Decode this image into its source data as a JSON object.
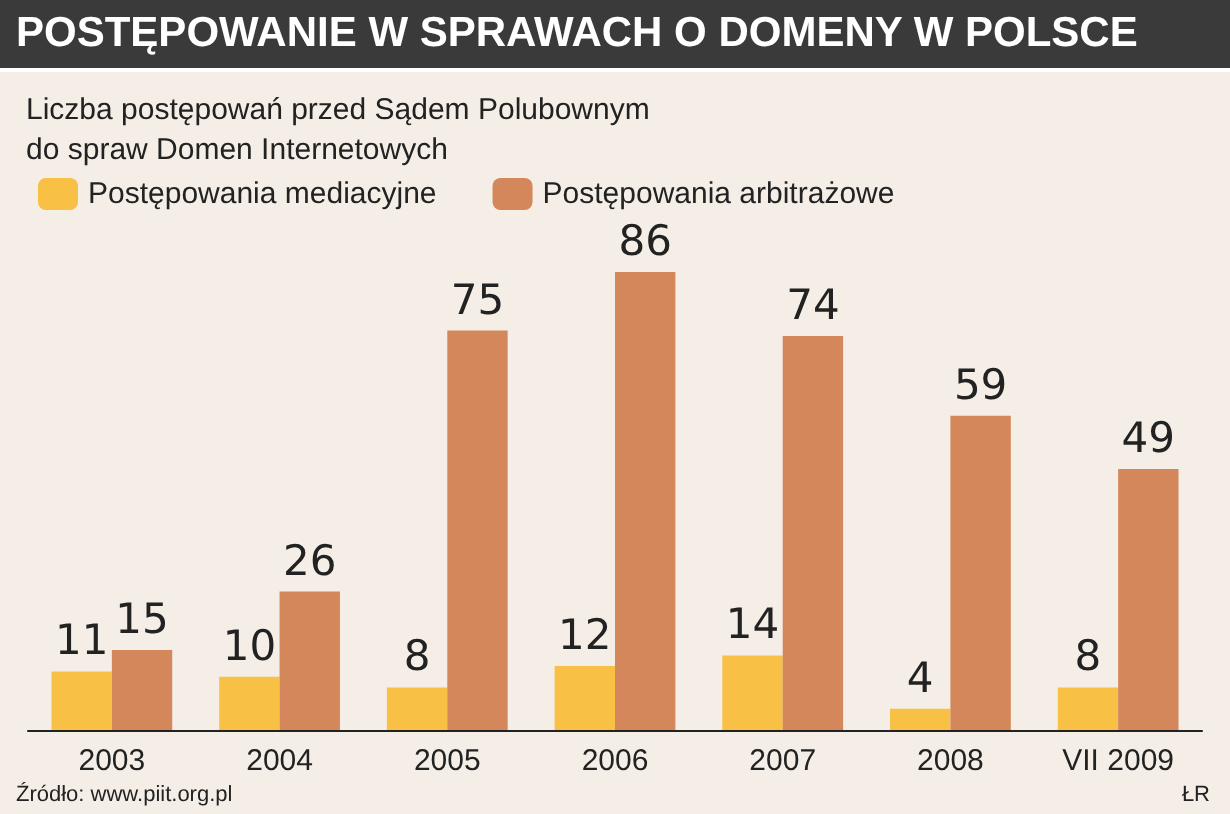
{
  "chart_data": {
    "type": "bar",
    "title": "POSTĘPOWANIE W SPRAWACH O DOMENY W POLSCE",
    "subtitle": "Liczba postępowań przed Sądem Polubownym\ndo spraw Domen Internetowych",
    "categories": [
      "2003",
      "2004",
      "2005",
      "2006",
      "2007",
      "2008",
      "VII 2009"
    ],
    "series": [
      {
        "name": "Postępowania mediacyjne",
        "color": "#f8c045",
        "values": [
          11,
          10,
          8,
          12,
          14,
          4,
          8
        ]
      },
      {
        "name": "Postępowania arbitrażowe",
        "color": "#d4875a",
        "values": [
          15,
          26,
          75,
          86,
          74,
          59,
          49
        ]
      }
    ],
    "data_labels": true,
    "legend": "top left",
    "grid": false,
    "annotations": [
      "Źródło: www.piit.org.pl",
      "ŁR"
    ]
  }
}
